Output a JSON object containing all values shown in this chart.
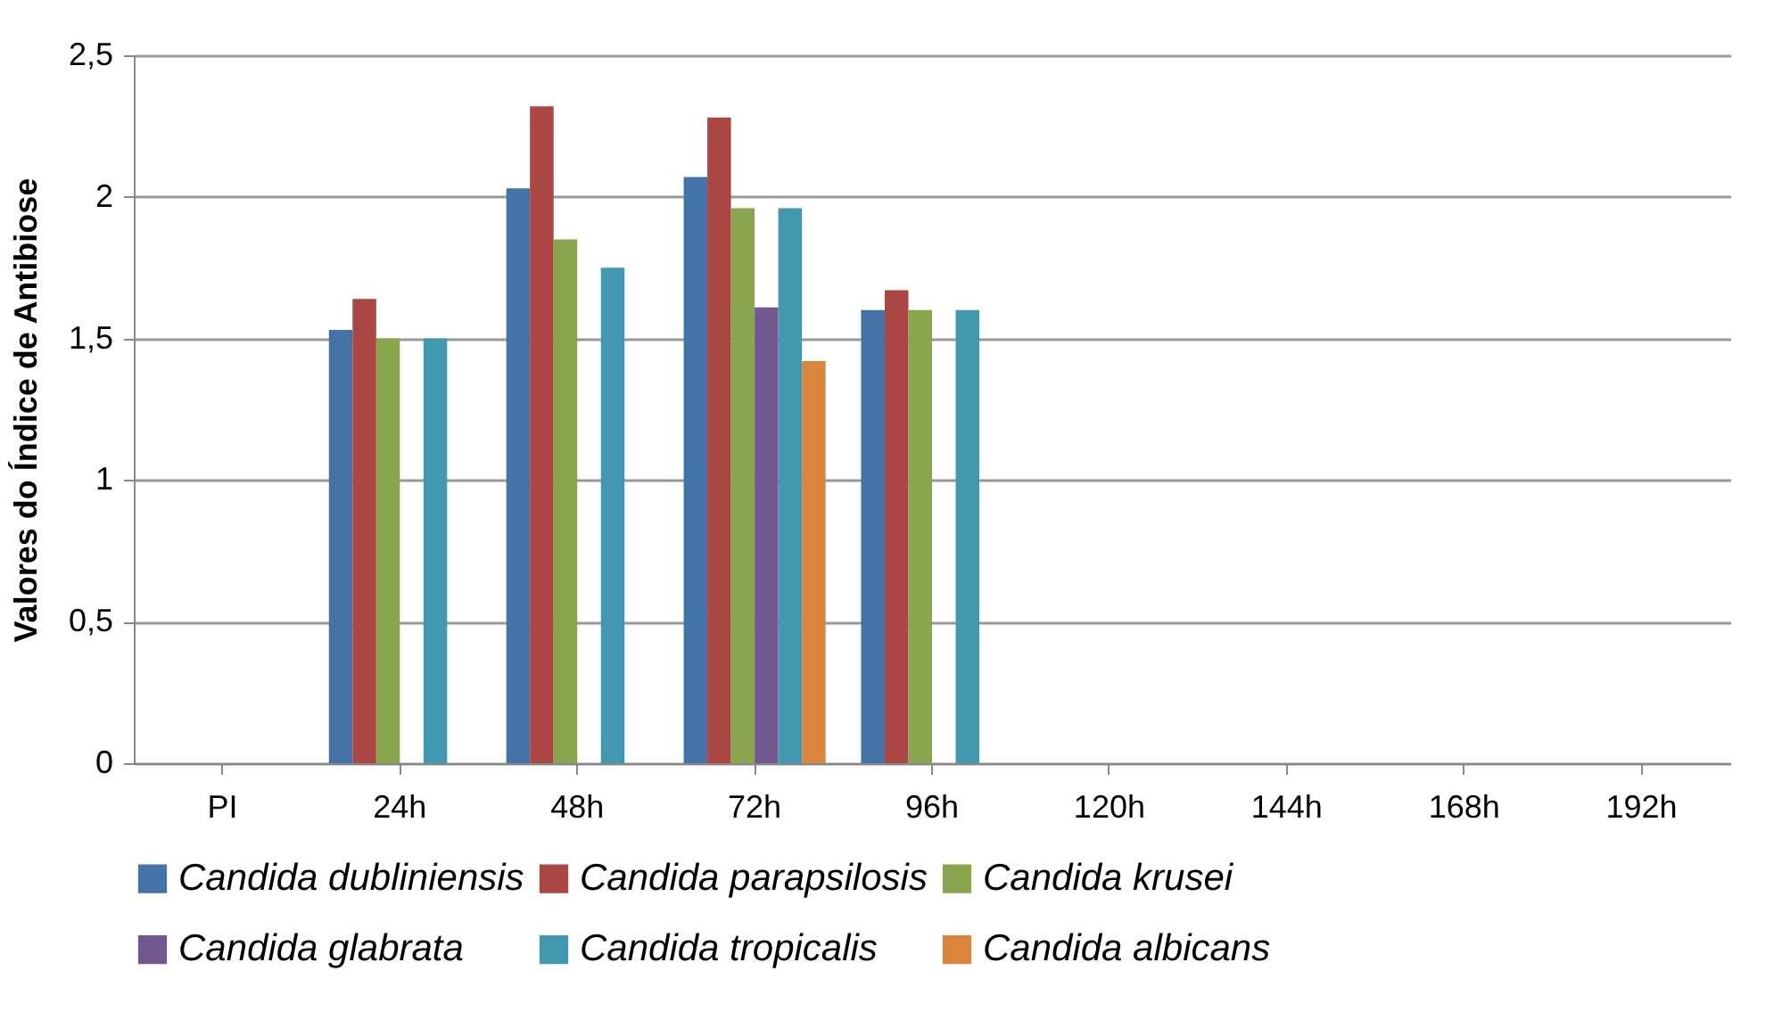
{
  "chart_data": {
    "type": "bar",
    "ylabel": "Valores do Índice de Antibiose",
    "categories": [
      "PI",
      "24h",
      "48h",
      "72h",
      "96h",
      "120h",
      "144h",
      "168h",
      "192h"
    ],
    "series": [
      {
        "name": "Candida dubliniensis",
        "color": "#4572a7",
        "values": [
          null,
          1.53,
          2.03,
          2.07,
          1.6,
          null,
          null,
          null,
          null
        ]
      },
      {
        "name": "Candida parapsilosis",
        "color": "#aa4643",
        "values": [
          null,
          1.64,
          2.32,
          2.28,
          1.67,
          null,
          null,
          null,
          null
        ]
      },
      {
        "name": "Candida krusei",
        "color": "#89a54e",
        "values": [
          null,
          1.5,
          1.85,
          1.96,
          1.6,
          null,
          null,
          null,
          null
        ]
      },
      {
        "name": "Candida glabrata",
        "color": "#71588f",
        "values": [
          null,
          null,
          null,
          1.61,
          null,
          null,
          null,
          null,
          null
        ]
      },
      {
        "name": "Candida tropicalis",
        "color": "#4198af",
        "values": [
          null,
          1.5,
          1.75,
          1.96,
          1.6,
          null,
          null,
          null,
          null
        ]
      },
      {
        "name": "Candida albicans",
        "color": "#db843d",
        "values": [
          null,
          null,
          null,
          1.42,
          null,
          null,
          null,
          null,
          null
        ]
      }
    ],
    "ylim": [
      0,
      2.5
    ],
    "yticks": [
      {
        "value": 0,
        "label": "0"
      },
      {
        "value": 0.5,
        "label": "0,5"
      },
      {
        "value": 1,
        "label": "1"
      },
      {
        "value": 1.5,
        "label": "1,5"
      },
      {
        "value": 2,
        "label": "2"
      },
      {
        "value": 2.5,
        "label": "2,5"
      }
    ],
    "grid": "y",
    "legend": "bottom"
  }
}
